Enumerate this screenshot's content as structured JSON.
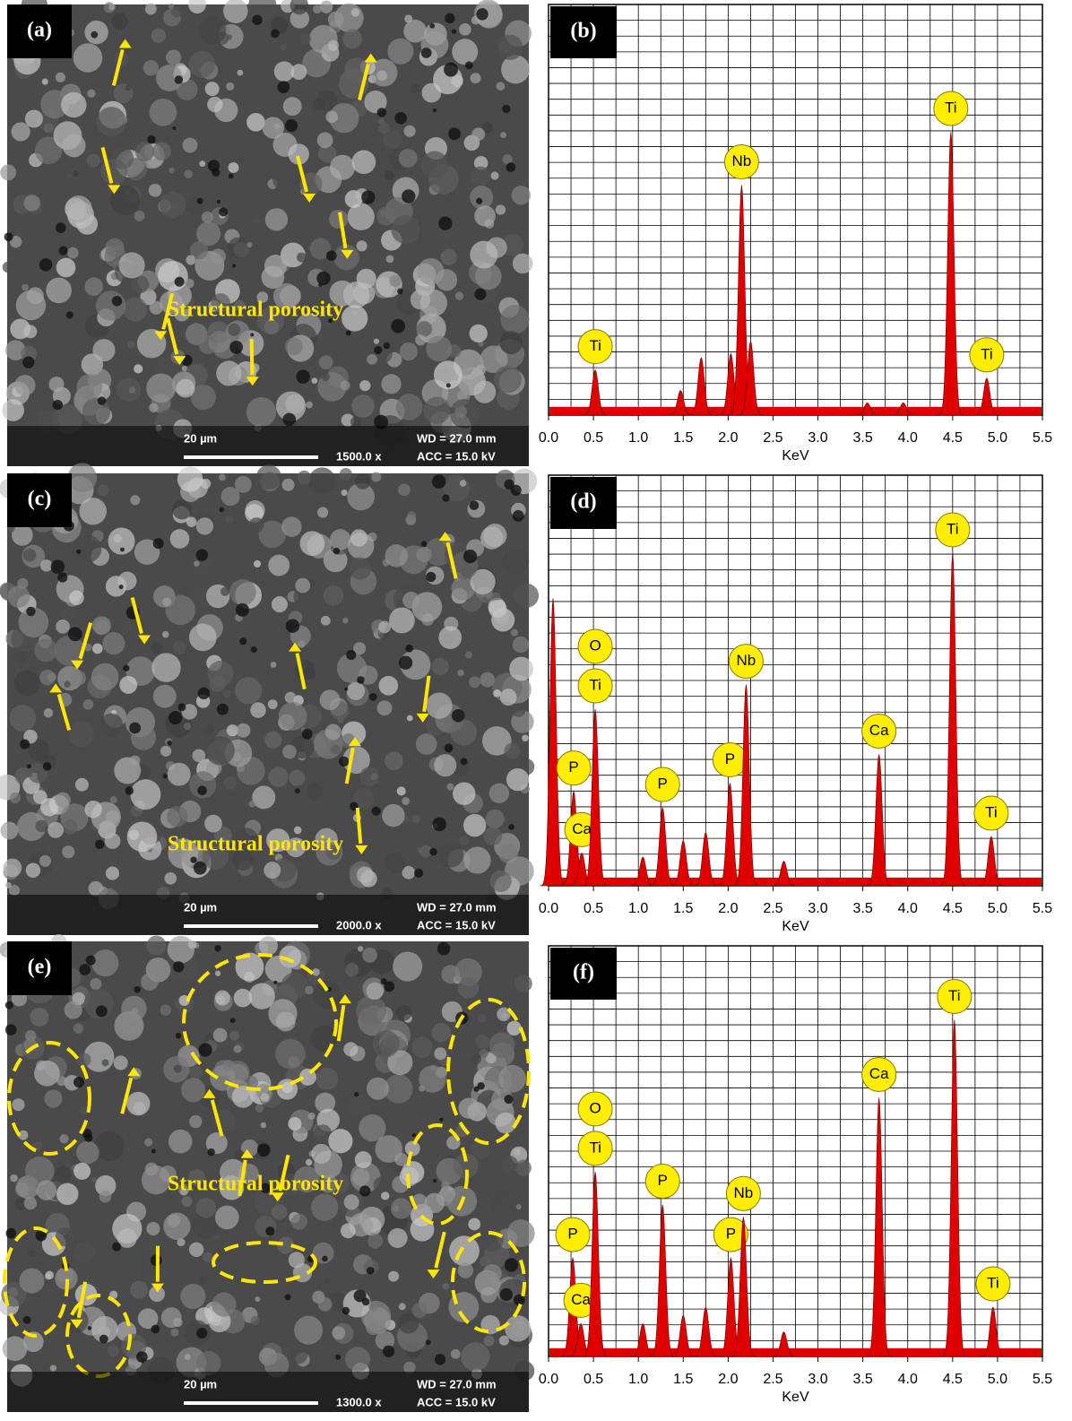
{
  "panels": [
    {
      "label": "(a)",
      "annotation": "Structural porosity",
      "scale_bar": "20 µm",
      "magnification": "1500.0 x",
      "wd": "WD = 27.0 mm",
      "acc": "ACC = 15.0 kV"
    },
    {
      "label": "(c)",
      "annotation": "Structural porosity",
      "scale_bar": "20 µm",
      "magnification": "2000.0 x",
      "wd": "WD = 27.0 mm",
      "acc": "ACC = 15.0 kV"
    },
    {
      "label": "(e)",
      "annotation": "Structural porosity",
      "scale_bar": "20 µm",
      "magnification": "1300.0 x",
      "wd": "WD = 27.0 mm",
      "acc": "ACC = 15.0 kV"
    }
  ],
  "chart_data": [
    {
      "type": "spectrum",
      "panel_label": "(b)",
      "x_label": "KeV",
      "color": "#e00000",
      "grid": true,
      "xlim": [
        0,
        5.5
      ],
      "ylim": [
        0,
        100
      ],
      "background": 2,
      "xticks": [
        {
          "value": 0,
          "label": "0.0"
        },
        0.5,
        {
          "value": 1,
          "label": "1.0"
        },
        1.5,
        {
          "value": 2,
          "label": "2.0"
        },
        2.5,
        {
          "value": 3,
          "label": "3.0"
        },
        3.5,
        {
          "value": 4,
          "label": "4.0"
        },
        4.5,
        {
          "value": 5,
          "label": "5.0"
        },
        5.5
      ],
      "x": [
        0.52,
        1.47,
        1.7,
        2.03,
        2.15,
        2.25,
        3.55,
        3.95,
        4.48,
        4.88
      ],
      "values": [
        11,
        6,
        14,
        15,
        56,
        18,
        3,
        3,
        69,
        9
      ],
      "labels": [
        [
          "Ti"
        ],
        null,
        null,
        null,
        [
          "Nb"
        ],
        null,
        null,
        null,
        [
          "Ti"
        ],
        [
          "Ti"
        ]
      ]
    },
    {
      "type": "spectrum",
      "panel_label": "(d)",
      "x_label": "KeV",
      "color": "#e00000",
      "grid": true,
      "xlim": [
        0,
        5.5
      ],
      "ylim": [
        0,
        100
      ],
      "background": 2,
      "xticks": [
        {
          "value": 0,
          "label": "0.0"
        },
        0.5,
        {
          "value": 1,
          "label": "1.0"
        },
        1.5,
        {
          "value": 2,
          "label": "2.0"
        },
        2.5,
        {
          "value": 3,
          "label": "3.0"
        },
        3.5,
        {
          "value": 4,
          "label": "4.0"
        },
        4.5,
        {
          "value": 5,
          "label": "5.0"
        },
        5.5
      ],
      "x": [
        0.05,
        0.28,
        0.37,
        0.52,
        1.05,
        1.27,
        1.5,
        1.75,
        2.02,
        2.2,
        2.62,
        3.68,
        4.5,
        4.93
      ],
      "values": [
        70,
        23,
        8,
        43,
        7,
        19,
        11,
        13,
        25,
        49,
        6,
        32,
        81,
        12
      ],
      "labels": [
        null,
        [
          "P"
        ],
        [
          "Ca"
        ],
        [
          "Ti",
          "O"
        ],
        null,
        [
          "P"
        ],
        null,
        null,
        [
          "P"
        ],
        [
          "Nb"
        ],
        null,
        [
          "Ca"
        ],
        [
          "Ti"
        ],
        [
          "Ti"
        ]
      ]
    },
    {
      "type": "spectrum",
      "panel_label": "(f)",
      "x_label": "KeV",
      "color": "#e00000",
      "grid": true,
      "xlim": [
        0,
        5.5
      ],
      "ylim": [
        0,
        100
      ],
      "background": 2,
      "xticks": [
        {
          "value": 0,
          "label": "0.0"
        },
        0.5,
        {
          "value": 1,
          "label": "1.0"
        },
        1.5,
        {
          "value": 2,
          "label": "2.0"
        },
        2.5,
        {
          "value": 3,
          "label": "3.0"
        },
        3.5,
        {
          "value": 4,
          "label": "4.0"
        },
        4.5,
        {
          "value": 5,
          "label": "5.0"
        },
        5.5
      ],
      "x": [
        0.27,
        0.36,
        0.52,
        1.05,
        1.27,
        1.5,
        1.75,
        2.03,
        2.17,
        2.62,
        3.68,
        4.52,
        4.95
      ],
      "values": [
        24,
        8,
        45,
        8,
        37,
        10,
        12,
        24,
        34,
        6,
        63,
        82,
        12
      ],
      "labels": [
        [
          "P"
        ],
        [
          "Ca"
        ],
        [
          "Ti",
          "O"
        ],
        null,
        [
          "P"
        ],
        null,
        null,
        [
          "P"
        ],
        [
          "Nb"
        ],
        null,
        [
          "Ca"
        ],
        [
          "Ti"
        ],
        [
          "Ti"
        ]
      ]
    }
  ]
}
